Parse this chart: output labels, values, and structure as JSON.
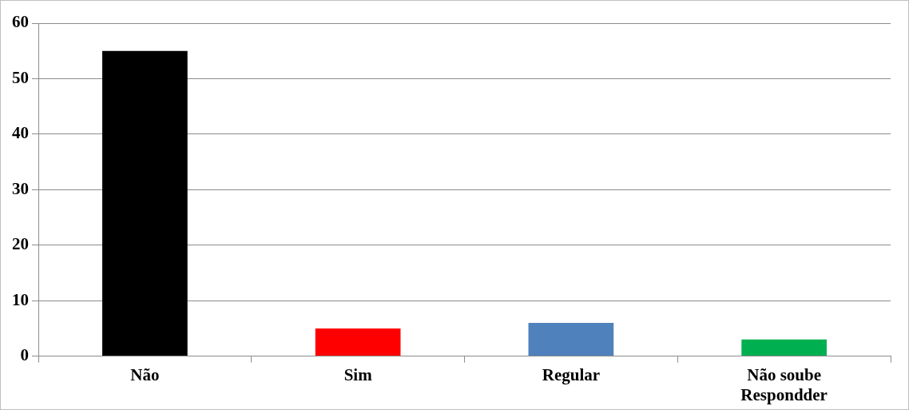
{
  "chart_data": {
    "type": "bar",
    "categories": [
      "Não",
      "Sim",
      "Regular",
      "Não soube Respondder"
    ],
    "values": [
      55,
      5,
      6,
      3
    ],
    "colors": [
      "#000000",
      "#ff0000",
      "#4f81bd",
      "#00b050"
    ],
    "ylim": [
      0,
      60
    ],
    "yticks": [
      0,
      10,
      20,
      30,
      40,
      50,
      60
    ],
    "grid": "y",
    "legend": false
  }
}
